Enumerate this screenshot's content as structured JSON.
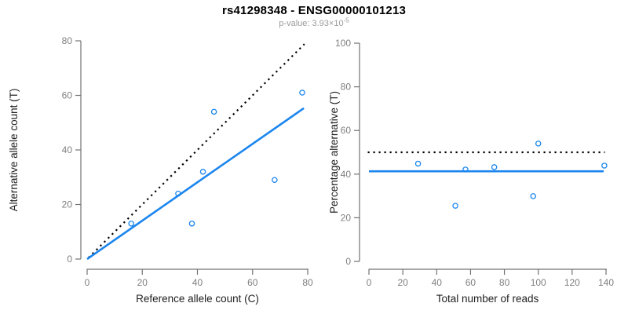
{
  "title": "rs41298348 - ENSG00000101213",
  "subtitle": {
    "base": "p-value: 3.93×10",
    "exponent": "-5"
  },
  "colors": {
    "accent_blue": "#1C86EE",
    "dotted_black": "#000000",
    "axis_line": "#737373",
    "tick_label": "#7f7f7f",
    "axis_title": "#1f1f1f",
    "title": "#000000",
    "subtitle_gray": "#9b9b9b",
    "background": "#ffffff"
  },
  "chart_data": [
    {
      "type": "scatter",
      "name": "allele-counts-panel",
      "xlabel": "Reference allele count (C)",
      "ylabel": "Alternative allele count (T)",
      "xlim": [
        0,
        80
      ],
      "ylim": [
        0,
        80
      ],
      "xticks": [
        0,
        20,
        40,
        60,
        80
      ],
      "yticks": [
        0,
        20,
        40,
        60,
        80
      ],
      "grid": false,
      "legend": "none",
      "points": [
        [
          16,
          13
        ],
        [
          33,
          24
        ],
        [
          38,
          13
        ],
        [
          42,
          32
        ],
        [
          46,
          54
        ],
        [
          68,
          29
        ],
        [
          78,
          61
        ]
      ],
      "lines": [
        {
          "name": "identity-line",
          "style": "dotted",
          "color": "#000000",
          "from": [
            0.5,
            0.5
          ],
          "to": [
            78.8,
            78.8
          ]
        },
        {
          "name": "regression-line",
          "style": "solid",
          "color": "#1C86EE",
          "from": [
            0,
            0
          ],
          "to": [
            78.6,
            55.3
          ]
        }
      ]
    },
    {
      "type": "scatter",
      "name": "percentage-reads-panel",
      "xlabel": "Total number of reads",
      "ylabel": "Percentage alternative (T)",
      "xlim": [
        0,
        140
      ],
      "ylim": [
        0,
        100
      ],
      "xticks": [
        0,
        20,
        40,
        60,
        80,
        100,
        120,
        140
      ],
      "yticks": [
        0,
        20,
        40,
        60,
        80,
        100
      ],
      "grid": false,
      "legend": "none",
      "points": [
        [
          29,
          44.8
        ],
        [
          51,
          25.5
        ],
        [
          57,
          42.1
        ],
        [
          74,
          43.2
        ],
        [
          97,
          29.9
        ],
        [
          100,
          54.0
        ],
        [
          139,
          43.9
        ]
      ],
      "lines": [
        {
          "name": "fifty-percent-line",
          "style": "dotted",
          "color": "#000000",
          "from": [
            -0.7,
            50
          ],
          "to": [
            139.3,
            50
          ]
        },
        {
          "name": "mean-percentage-line",
          "style": "solid",
          "color": "#1C86EE",
          "from": [
            0,
            41.3
          ],
          "to": [
            138.6,
            41.3
          ]
        }
      ]
    }
  ]
}
